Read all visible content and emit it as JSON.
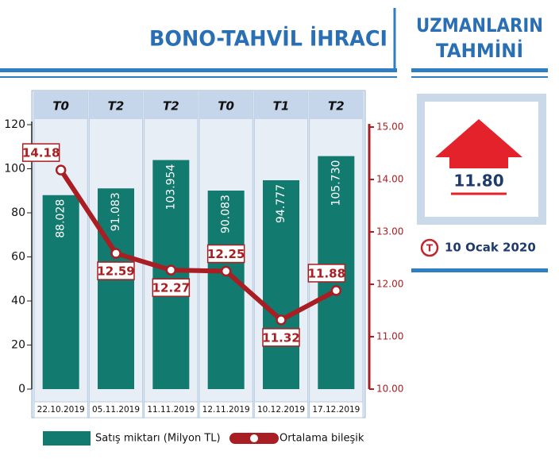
{
  "chart_data": {
    "type": "bar-line",
    "title": "BONO-TAHVİL İHRACI",
    "categories": [
      "22.10.2019",
      "05.11.2019",
      "11.11.2019",
      "12.11.2019",
      "10.12.2019",
      "17.12.2019"
    ],
    "terms": [
      "T0",
      "T2",
      "T2",
      "T0",
      "T1",
      "T2"
    ],
    "series": [
      {
        "name": "Satış miktarı (Milyon TL)",
        "type": "bar",
        "color": "#127a6e",
        "values": [
          88.028,
          91.083,
          103.954,
          90.083,
          94.777,
          105.73
        ],
        "value_labels": [
          "88.028",
          "91.083",
          "103.954",
          "90.083",
          "94.777",
          "105.730"
        ]
      },
      {
        "name": "Ortalama bileşik",
        "type": "line",
        "axis": "y2",
        "color": "#a81e22",
        "values": [
          14.18,
          12.59,
          12.27,
          12.25,
          11.32,
          11.88
        ]
      }
    ],
    "ylim": [
      0,
      120
    ],
    "yticks": [
      0,
      20,
      40,
      60,
      80,
      100,
      120
    ],
    "y2lim": [
      10,
      15
    ],
    "y2ticks": [
      {
        "value": 10,
        "label": "10.00"
      },
      {
        "value": 11,
        "label": "11.00"
      },
      {
        "value": 12,
        "label": "12.00"
      },
      {
        "value": 13,
        "label": "13.00"
      },
      {
        "value": 14,
        "label": "14.00"
      },
      {
        "value": 15,
        "label": "15.00"
      }
    ]
  },
  "forecast": {
    "title_lines": [
      "UZMANLARIN",
      "TAHMİNİ"
    ],
    "value": "11.80",
    "date": "10 Ocak 2020",
    "logo": "T"
  }
}
